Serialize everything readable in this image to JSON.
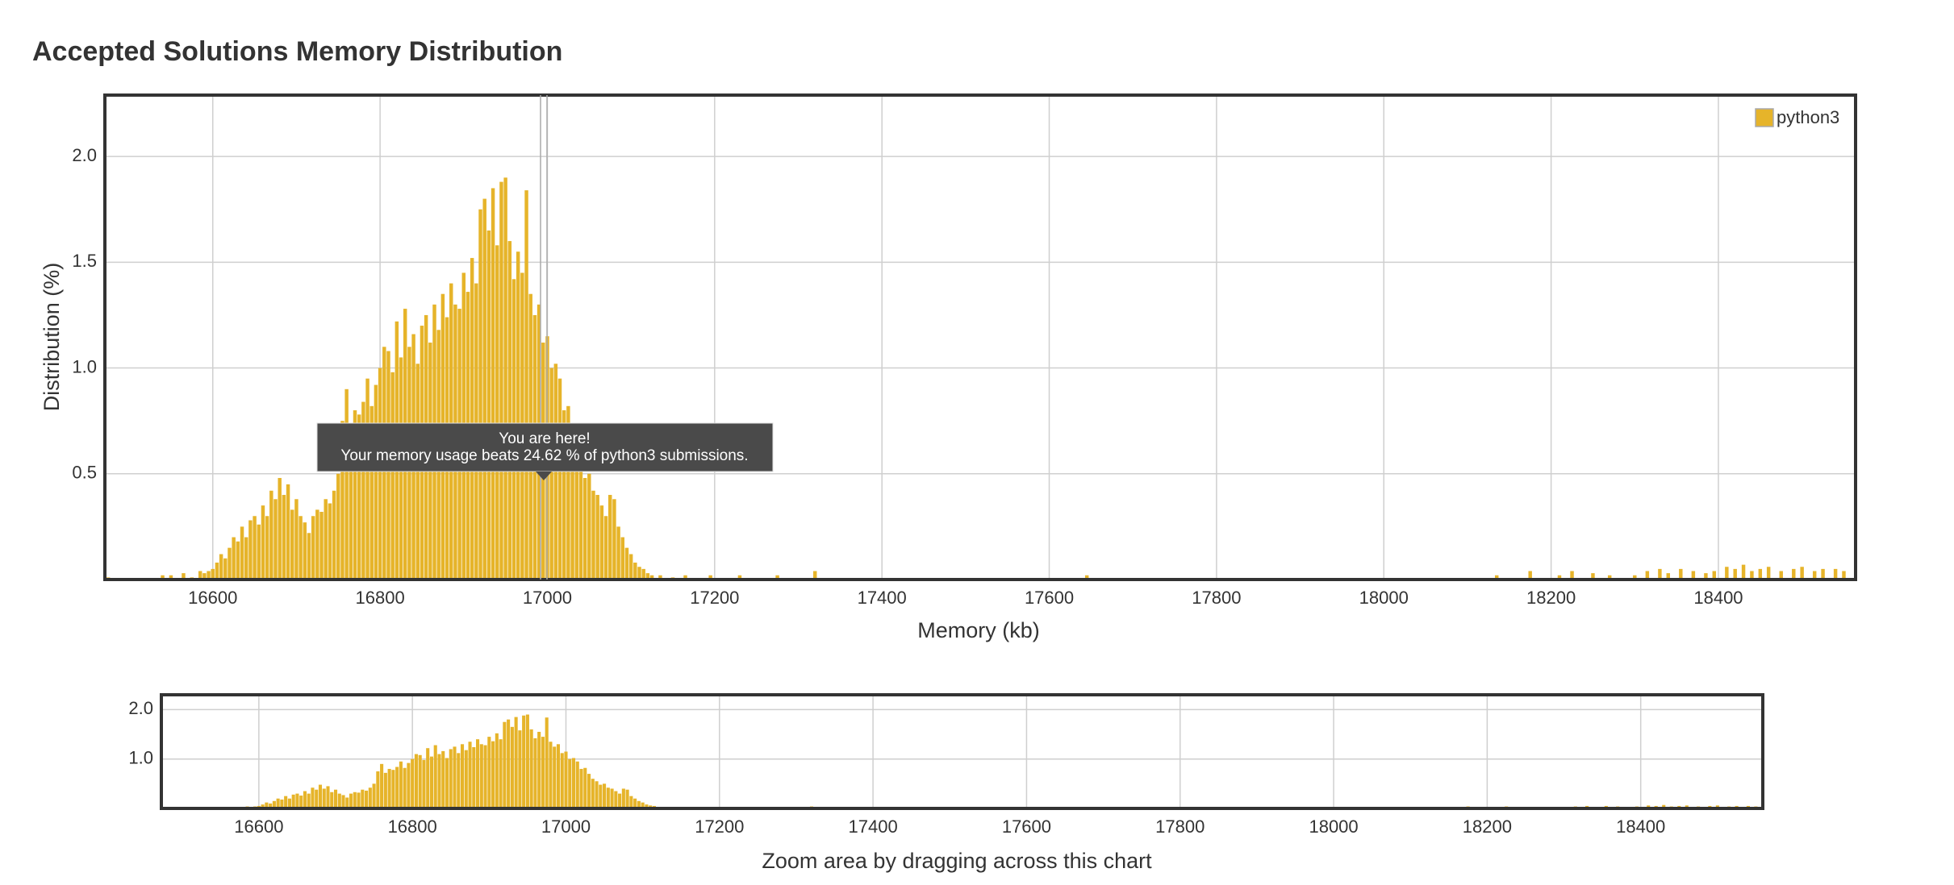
{
  "chart_data": [
    {
      "type": "bar",
      "title": "Accepted Solutions Memory Distribution",
      "xlabel": "Memory (kb)",
      "ylabel": "Distribution (%)",
      "x": [
        16475,
        16540,
        16550,
        16565,
        16575,
        16585,
        16590,
        16595,
        16600,
        16605,
        16610,
        16615,
        16620,
        16625,
        16630,
        16635,
        16640,
        16645,
        16650,
        16655,
        16660,
        16665,
        16670,
        16675,
        16680,
        16685,
        16690,
        16695,
        16700,
        16705,
        16710,
        16715,
        16720,
        16725,
        16730,
        16735,
        16740,
        16745,
        16750,
        16755,
        16760,
        16765,
        16770,
        16775,
        16780,
        16785,
        16790,
        16795,
        16800,
        16805,
        16810,
        16815,
        16820,
        16825,
        16830,
        16835,
        16840,
        16845,
        16850,
        16855,
        16860,
        16865,
        16870,
        16875,
        16880,
        16885,
        16890,
        16895,
        16900,
        16905,
        16910,
        16915,
        16920,
        16925,
        16930,
        16935,
        16940,
        16945,
        16950,
        16955,
        16960,
        16965,
        16970,
        16975,
        16980,
        16985,
        16990,
        16995,
        17000,
        17005,
        17010,
        17015,
        17020,
        17025,
        17030,
        17035,
        17040,
        17045,
        17050,
        17055,
        17060,
        17065,
        17070,
        17075,
        17080,
        17085,
        17090,
        17095,
        17100,
        17105,
        17110,
        17115,
        17120,
        17125,
        17135,
        17150,
        17165,
        17195,
        17230,
        17275,
        17320,
        17645,
        18135,
        18175,
        18210,
        18225,
        18250,
        18270,
        18300,
        18315,
        18330,
        18340,
        18355,
        18370,
        18385,
        18395,
        18410,
        18420,
        18430,
        18440,
        18450,
        18460,
        18475,
        18490,
        18500,
        18515,
        18525,
        18540,
        18550
      ],
      "series": [
        {
          "name": "python3",
          "color": "#e6b42a",
          "values": [
            0.01,
            0.02,
            0.02,
            0.03,
            0.01,
            0.04,
            0.03,
            0.04,
            0.05,
            0.08,
            0.12,
            0.1,
            0.15,
            0.2,
            0.18,
            0.25,
            0.2,
            0.28,
            0.3,
            0.26,
            0.35,
            0.3,
            0.42,
            0.38,
            0.48,
            0.4,
            0.45,
            0.33,
            0.38,
            0.3,
            0.27,
            0.22,
            0.3,
            0.33,
            0.32,
            0.38,
            0.36,
            0.42,
            0.5,
            0.75,
            0.9,
            0.72,
            0.8,
            0.78,
            0.84,
            0.95,
            0.82,
            0.92,
            1.0,
            1.1,
            1.08,
            0.98,
            1.22,
            1.05,
            1.28,
            1.1,
            1.16,
            1.02,
            1.2,
            1.25,
            1.12,
            1.3,
            1.18,
            1.35,
            1.24,
            1.4,
            1.3,
            1.28,
            1.45,
            1.36,
            1.52,
            1.4,
            1.75,
            1.8,
            1.65,
            1.85,
            1.58,
            1.88,
            1.9,
            1.6,
            1.42,
            1.55,
            1.45,
            1.84,
            1.35,
            1.25,
            1.3,
            1.12,
            1.15,
            1.0,
            1.02,
            0.95,
            0.8,
            0.82,
            0.7,
            0.6,
            0.55,
            0.48,
            0.5,
            0.42,
            0.4,
            0.35,
            0.3,
            0.4,
            0.38,
            0.25,
            0.2,
            0.15,
            0.12,
            0.08,
            0.06,
            0.05,
            0.03,
            0.02,
            0.02,
            0.01,
            0.02,
            0.02,
            0.02,
            0.02,
            0.04,
            0.02,
            0.02,
            0.04,
            0.02,
            0.04,
            0.03,
            0.02,
            0.02,
            0.04,
            0.05,
            0.03,
            0.05,
            0.04,
            0.03,
            0.04,
            0.06,
            0.05,
            0.07,
            0.04,
            0.05,
            0.06,
            0.04,
            0.05,
            0.06,
            0.04,
            0.05,
            0.05,
            0.04
          ]
        }
      ],
      "xlim": [
        16471,
        18564
      ],
      "ylim": [
        0,
        2.29
      ],
      "xticks": [
        16600,
        16800,
        17000,
        17200,
        17400,
        17600,
        17800,
        18000,
        18200,
        18400
      ],
      "yticks": [
        0.5,
        {
          "value": 1,
          "label": "1.0"
        },
        1.5,
        {
          "value": 2,
          "label": "2.0"
        }
      ],
      "grid": true,
      "legend": "upper right",
      "annotations": [
        "You are here!",
        "Your memory usage beats 24.62 % of python3 submissions."
      ]
    },
    {
      "type": "bar",
      "xlabel": "Zoom area by dragging across this chart",
      "xlim": [
        16473,
        18559
      ],
      "ylim": [
        0,
        2.3
      ],
      "xticks": [
        16600,
        16800,
        17000,
        17200,
        17400,
        17600,
        17800,
        18000,
        18200,
        18400
      ],
      "yticks": [
        {
          "value": 1,
          "label": "1.0"
        },
        {
          "value": 2,
          "label": "2.0"
        }
      ],
      "grid": true
    }
  ]
}
